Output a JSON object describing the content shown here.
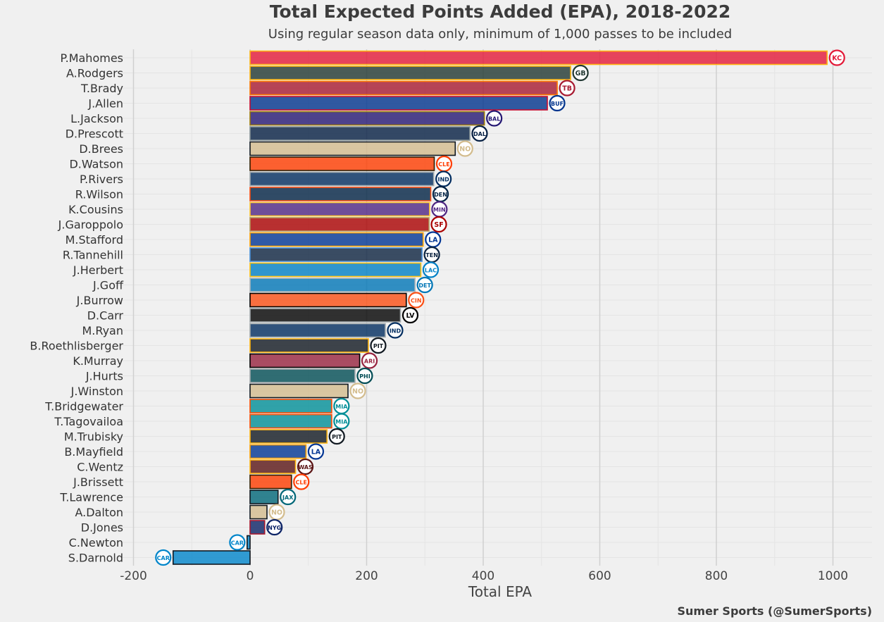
{
  "colors": {
    "background": "#f0f0f0",
    "grid_major": "#d0d0d0",
    "grid_minor": "#e4e4e4"
  },
  "chart_data": {
    "type": "bar",
    "orientation": "horizontal",
    "title": "Total Expected Points Added (EPA), 2018-2022",
    "subtitle": "Using regular season data only, minimum of 1,000 passes to be included",
    "xlabel": "Total EPA",
    "ylabel": "",
    "xlim": [
      -200,
      1050
    ],
    "xticks": [
      -200,
      0,
      200,
      400,
      600,
      800,
      1000
    ],
    "grid": true,
    "credit": "Sumer Sports (@SumerSports)",
    "bars": [
      {
        "player": "P.Mahomes",
        "value": 990,
        "team": "KC",
        "fill": "#E31837",
        "edge": "#FFB612"
      },
      {
        "player": "A.Rodgers",
        "value": 550,
        "team": "GB",
        "fill": "#203731",
        "edge": "#FFB612"
      },
      {
        "player": "T.Brady",
        "value": 527,
        "team": "TB",
        "fill": "#A71930",
        "edge": "#FF7900"
      },
      {
        "player": "J.Allen",
        "value": 510,
        "team": "BUF",
        "fill": "#00338D",
        "edge": "#C60C30"
      },
      {
        "player": "L.Jackson",
        "value": 402,
        "team": "BAL",
        "fill": "#241773",
        "edge": "#9E7C0C"
      },
      {
        "player": "D.Prescott",
        "value": 377,
        "team": "DAL",
        "fill": "#041E42",
        "edge": "#869397"
      },
      {
        "player": "D.Brees",
        "value": 352,
        "team": "NO",
        "fill": "#D3BC8D",
        "edge": "#101820"
      },
      {
        "player": "D.Watson",
        "value": 316,
        "team": "CLE",
        "fill": "#FF3C00",
        "edge": "#311D00"
      },
      {
        "player": "P.Rivers",
        "value": 315,
        "team": "IND",
        "fill": "#002C5F",
        "edge": "#A2AAAD"
      },
      {
        "player": "R.Wilson",
        "value": 310,
        "team": "DEN",
        "fill": "#002244",
        "edge": "#FB4F14"
      },
      {
        "player": "K.Cousins",
        "value": 308,
        "team": "MIN",
        "fill": "#4F2683",
        "edge": "#FFC62F"
      },
      {
        "player": "J.Garoppolo",
        "value": 307,
        "team": "SF",
        "fill": "#AA0000",
        "edge": "#B3995D"
      },
      {
        "player": "M.Stafford",
        "value": 297,
        "team": "LA",
        "fill": "#003594",
        "edge": "#FFA300"
      },
      {
        "player": "R.Tannehill",
        "value": 295,
        "team": "TEN",
        "fill": "#0C2340",
        "edge": "#4B92DB"
      },
      {
        "player": "J.Herbert",
        "value": 293,
        "team": "LAC",
        "fill": "#0080C6",
        "edge": "#FFC20E"
      },
      {
        "player": "J.Goff",
        "value": 283,
        "team": "DET",
        "fill": "#0076B6",
        "edge": "#B0B7BC"
      },
      {
        "player": "J.Burrow",
        "value": 268,
        "team": "CIN",
        "fill": "#FB4F14",
        "edge": "#000000"
      },
      {
        "player": "D.Carr",
        "value": 258,
        "team": "LV",
        "fill": "#000000",
        "edge": "#A5ACAF"
      },
      {
        "player": "M.Ryan",
        "value": 232,
        "team": "IND",
        "fill": "#002C5F",
        "edge": "#A2AAAD"
      },
      {
        "player": "B.Roethlisberger",
        "value": 203,
        "team": "PIT",
        "fill": "#101820",
        "edge": "#FFB612"
      },
      {
        "player": "K.Murray",
        "value": 188,
        "team": "ARI",
        "fill": "#97233F",
        "edge": "#000000"
      },
      {
        "player": "J.Hurts",
        "value": 180,
        "team": "PHI",
        "fill": "#004C54",
        "edge": "#A5ACAF"
      },
      {
        "player": "J.Winston",
        "value": 168,
        "team": "NO",
        "fill": "#D3BC8D",
        "edge": "#101820"
      },
      {
        "player": "T.Bridgewater",
        "value": 140,
        "team": "MIA",
        "fill": "#008E97",
        "edge": "#FC4C02"
      },
      {
        "player": "T.Tagovailoa",
        "value": 140,
        "team": "MIA",
        "fill": "#008E97",
        "edge": "#FC4C02"
      },
      {
        "player": "M.Trubisky",
        "value": 132,
        "team": "PIT",
        "fill": "#101820",
        "edge": "#FFB612"
      },
      {
        "player": "B.Mayfield",
        "value": 96,
        "team": "LA",
        "fill": "#003594",
        "edge": "#FFA300"
      },
      {
        "player": "C.Wentz",
        "value": 78,
        "team": "WAS",
        "fill": "#5A1414",
        "edge": "#FFB612"
      },
      {
        "player": "J.Brissett",
        "value": 71,
        "team": "CLE",
        "fill": "#FF3C00",
        "edge": "#311D00"
      },
      {
        "player": "T.Lawrence",
        "value": 48,
        "team": "JAX",
        "fill": "#006778",
        "edge": "#101820"
      },
      {
        "player": "A.Dalton",
        "value": 29,
        "team": "NO",
        "fill": "#D3BC8D",
        "edge": "#101820"
      },
      {
        "player": "D.Jones",
        "value": 25,
        "team": "NYG",
        "fill": "#0B2265",
        "edge": "#A71930"
      },
      {
        "player": "C.Newton",
        "value": -5,
        "team": "CAR",
        "fill": "#0085CA",
        "edge": "#101820"
      },
      {
        "player": "S.Darnold",
        "value": -132,
        "team": "CAR",
        "fill": "#0085CA",
        "edge": "#101820"
      }
    ]
  }
}
